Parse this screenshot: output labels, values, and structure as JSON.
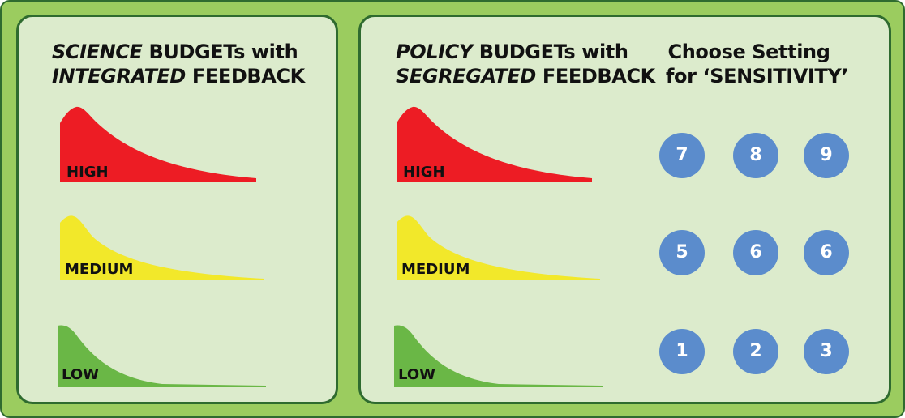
{
  "left_panel": {
    "title_line1_italic": "SCIENCE",
    "title_line1_rest": " BUDGETs with",
    "title_line2_italic": "INTEGRATED",
    "title_line2_rest": " FEEDBACK",
    "curves": [
      {
        "label": "HIGH",
        "color": "#ed1c24"
      },
      {
        "label": "MEDIUM",
        "color": "#f2e82a"
      },
      {
        "label": "LOW",
        "color": "#6ab746"
      }
    ]
  },
  "right_panel": {
    "policy_title_line1_italic": "POLICY",
    "policy_title_line1_rest": " BUDGETs with",
    "policy_title_line2_italic": "SEGREGATED",
    "policy_title_line2_rest": " FEEDBACK",
    "curves": [
      {
        "label": "HIGH",
        "color": "#ed1c24"
      },
      {
        "label": "MEDIUM",
        "color": "#f2e82a"
      },
      {
        "label": "LOW",
        "color": "#6ab746"
      }
    ],
    "settings_title_line1": "Choose Setting",
    "settings_title_line2": "for ‘SENSITIVITY’",
    "settings_buttons": [
      {
        "label": "7"
      },
      {
        "label": "8"
      },
      {
        "label": "9"
      },
      {
        "label": "5"
      },
      {
        "label": "6"
      },
      {
        "label": "6"
      },
      {
        "label": "1"
      },
      {
        "label": "2"
      },
      {
        "label": "3"
      }
    ],
    "button_color": "#5b8ccc"
  },
  "colors": {
    "outer_background": "#9bcc5f",
    "panel_background": "#dcebcc",
    "border": "#2f6b2f"
  }
}
